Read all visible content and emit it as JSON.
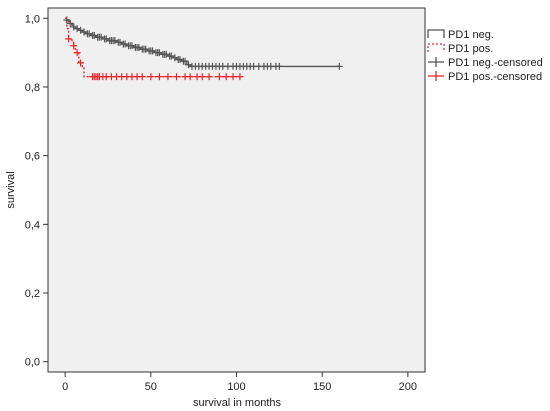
{
  "chart_data": {
    "type": "line",
    "title": "",
    "xlabel": "survival in months",
    "ylabel": "survival",
    "xlim": [
      -10,
      210
    ],
    "ylim": [
      -0.03,
      1.03
    ],
    "x_ticks": [
      0,
      50,
      100,
      150,
      200
    ],
    "x_tick_labels": [
      "0",
      "50",
      "100",
      "150",
      "200"
    ],
    "y_ticks": [
      0.0,
      0.2,
      0.4,
      0.6,
      0.8,
      1.0
    ],
    "y_tick_labels": [
      "0,0",
      "0,2",
      "0,4",
      "0,6",
      "0,8",
      "1,0"
    ],
    "grid": false,
    "legend_position": "right",
    "background_color": "#f0f0f0",
    "series": [
      {
        "name": "PD1 neg.",
        "color": "#555555",
        "line_style": "solid",
        "points": [
          [
            0,
            1.0
          ],
          [
            1,
            0.995
          ],
          [
            2,
            0.99
          ],
          [
            3,
            0.985
          ],
          [
            4,
            0.98
          ],
          [
            5,
            0.975
          ],
          [
            6,
            0.97
          ],
          [
            8,
            0.965
          ],
          [
            10,
            0.96
          ],
          [
            12,
            0.955
          ],
          [
            15,
            0.95
          ],
          [
            18,
            0.945
          ],
          [
            22,
            0.94
          ],
          [
            25,
            0.935
          ],
          [
            30,
            0.93
          ],
          [
            33,
            0.925
          ],
          [
            36,
            0.92
          ],
          [
            40,
            0.915
          ],
          [
            44,
            0.91
          ],
          [
            48,
            0.905
          ],
          [
            52,
            0.9
          ],
          [
            56,
            0.895
          ],
          [
            60,
            0.89
          ],
          [
            63,
            0.885
          ],
          [
            65,
            0.88
          ],
          [
            68,
            0.875
          ],
          [
            71,
            0.865
          ],
          [
            73,
            0.86
          ],
          [
            160,
            0.86
          ]
        ],
        "censored_x": [
          1,
          3,
          5,
          7,
          9,
          11,
          13,
          14,
          16,
          17,
          19,
          20,
          21,
          23,
          24,
          26,
          27,
          28,
          29,
          31,
          32,
          34,
          35,
          37,
          38,
          39,
          41,
          42,
          43,
          45,
          46,
          47,
          49,
          50,
          51,
          53,
          54,
          55,
          57,
          58,
          59,
          61,
          62,
          64,
          66,
          67,
          69,
          70,
          72,
          74,
          76,
          78,
          80,
          82,
          84,
          86,
          88,
          90,
          92,
          95,
          98,
          100,
          102,
          104,
          106,
          108,
          110,
          113,
          116,
          118,
          120,
          123,
          125,
          160
        ]
      },
      {
        "name": "PD1 pos.",
        "color": "#e8262b",
        "line_style": "dotted",
        "points": [
          [
            0,
            1.0
          ],
          [
            1,
            0.97
          ],
          [
            2,
            0.94
          ],
          [
            4,
            0.93
          ],
          [
            5,
            0.92
          ],
          [
            6,
            0.9
          ],
          [
            8,
            0.87
          ],
          [
            10,
            0.86
          ],
          [
            11,
            0.83
          ],
          [
            102,
            0.83
          ]
        ],
        "censored_x": [
          2,
          5,
          7,
          9,
          16,
          17,
          18,
          19,
          20,
          22,
          24,
          27,
          30,
          33,
          36,
          39,
          42,
          45,
          50,
          55,
          60,
          65,
          70,
          73,
          77,
          80,
          84,
          90,
          94,
          98,
          102
        ]
      }
    ],
    "legend": [
      {
        "label": "PD1 neg.",
        "color": "#555555",
        "symbol": "step-solid"
      },
      {
        "label": "PD1 pos.",
        "color": "#e8262b",
        "symbol": "step-dotted"
      },
      {
        "label": "PD1 neg.-censored",
        "color": "#555555",
        "symbol": "plus"
      },
      {
        "label": "PD1 pos.-censored",
        "color": "#e8262b",
        "symbol": "plus"
      }
    ]
  }
}
